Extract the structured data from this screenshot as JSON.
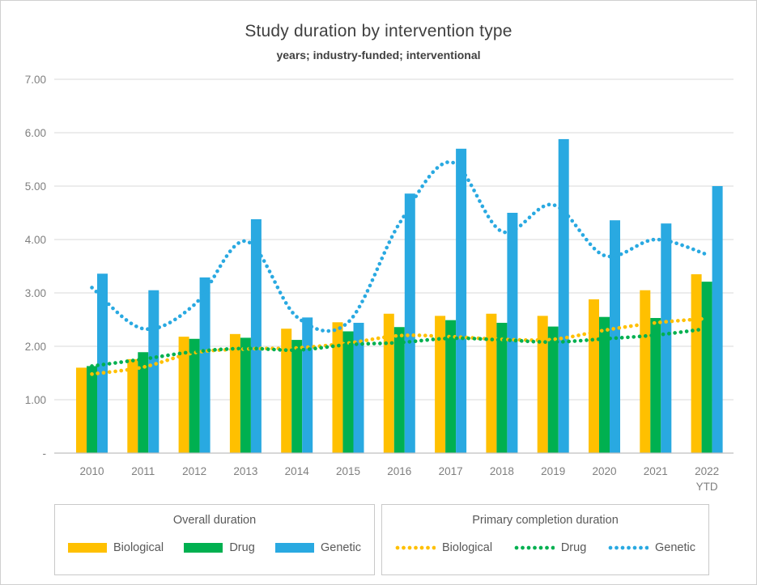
{
  "title": "Study duration by intervention type",
  "subtitle": "years; industry-funded; interventional",
  "colors": {
    "biological": "#FFC000",
    "drug": "#00B050",
    "genetic": "#29A9E1",
    "grid": "#D9D9D9",
    "axis_line": "#BFBFBF",
    "axis_text": "#7F7F7F",
    "title_text": "#404040",
    "legend_text": "#595959",
    "legend_border": "#C9C9C9"
  },
  "legend_overall": {
    "title": "Overall duration",
    "items": [
      {
        "label": "Biological",
        "color_key": "biological"
      },
      {
        "label": "Drug",
        "color_key": "drug"
      },
      {
        "label": "Genetic",
        "color_key": "genetic"
      }
    ]
  },
  "legend_primary": {
    "title": "Primary completion duration",
    "items": [
      {
        "label": "Biological",
        "color_key": "biological"
      },
      {
        "label": "Drug",
        "color_key": "drug"
      },
      {
        "label": "Genetic",
        "color_key": "genetic"
      }
    ]
  },
  "chart_data": {
    "type": "bar+line",
    "title": "Study duration by intervention type",
    "subtitle": "years; industry-funded; interventional",
    "categories": [
      "2010",
      "2011",
      "2012",
      "2013",
      "2014",
      "2015",
      "2016",
      "2017",
      "2018",
      "2019",
      "2020",
      "2021",
      "2022\nYTD"
    ],
    "ylim": [
      0,
      7
    ],
    "ytick_values": [
      0,
      1,
      2,
      3,
      4,
      5,
      6,
      7
    ],
    "ytick_labels": [
      "-",
      "1.00",
      "2.00",
      "3.00",
      "4.00",
      "5.00",
      "6.00",
      "7.00"
    ],
    "grid": "horizontal",
    "bar_series": [
      {
        "name": "Biological",
        "group": "Overall duration",
        "color_key": "biological",
        "values": [
          1.6,
          1.76,
          2.18,
          2.23,
          2.33,
          2.45,
          2.61,
          2.57,
          2.61,
          2.57,
          2.88,
          3.05,
          3.35
        ]
      },
      {
        "name": "Drug",
        "group": "Overall duration",
        "color_key": "drug",
        "values": [
          1.63,
          1.89,
          2.14,
          2.16,
          2.12,
          2.28,
          2.36,
          2.49,
          2.44,
          2.37,
          2.55,
          2.53,
          3.21
        ]
      },
      {
        "name": "Genetic",
        "group": "Overall duration",
        "color_key": "genetic",
        "values": [
          3.36,
          3.05,
          3.29,
          4.38,
          2.54,
          2.44,
          4.86,
          5.7,
          4.5,
          5.88,
          4.36,
          4.3,
          5.0
        ]
      }
    ],
    "line_series": [
      {
        "name": "Biological",
        "group": "Primary completion duration",
        "color_key": "biological",
        "style": "dotted",
        "values": [
          1.48,
          1.61,
          1.88,
          1.95,
          1.97,
          2.06,
          2.2,
          2.18,
          2.13,
          2.13,
          2.3,
          2.44,
          2.52
        ]
      },
      {
        "name": "Drug",
        "group": "Primary completion duration",
        "color_key": "drug",
        "style": "dotted",
        "values": [
          1.63,
          1.76,
          1.9,
          1.96,
          1.93,
          2.03,
          2.07,
          2.15,
          2.12,
          2.08,
          2.14,
          2.21,
          2.33
        ]
      },
      {
        "name": "Genetic",
        "group": "Primary completion duration",
        "color_key": "genetic",
        "style": "dotted",
        "values": [
          3.1,
          2.33,
          2.78,
          3.97,
          2.55,
          2.45,
          4.3,
          5.45,
          4.15,
          4.65,
          3.7,
          4.0,
          3.72
        ]
      }
    ],
    "legend_position": "bottom"
  }
}
